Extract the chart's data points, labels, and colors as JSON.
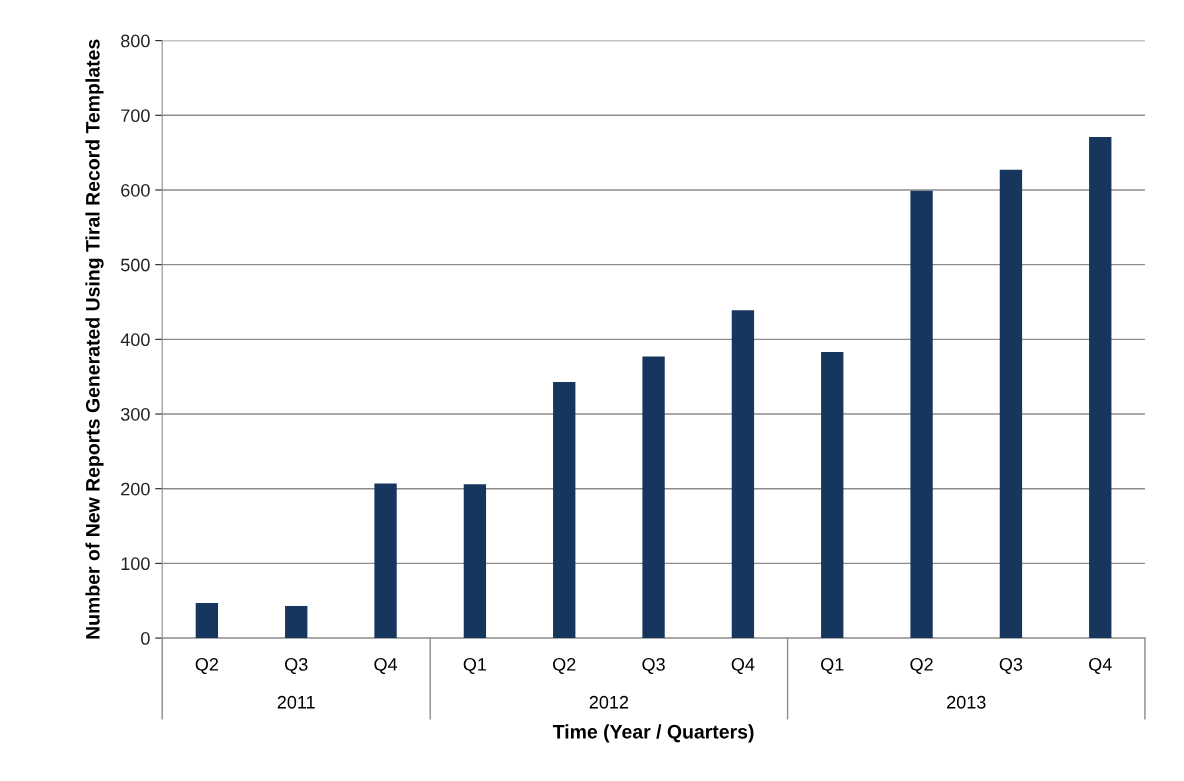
{
  "chart_data": {
    "type": "bar",
    "xlabel": "Time (Year / Quarters)",
    "ylabel": "Number of New Reports Generated Using Tiral Record Templates",
    "categories": [
      "Q2",
      "Q3",
      "Q4",
      "Q1",
      "Q2",
      "Q3",
      "Q4",
      "Q1",
      "Q2",
      "Q3",
      "Q4"
    ],
    "values": [
      47,
      43,
      207,
      206,
      343,
      377,
      439,
      383,
      599,
      627,
      671
    ],
    "color": "#17365d",
    "annotations": [
      "2011",
      "2012",
      "2013"
    ],
    "ylim": [
      0,
      800
    ],
    "yticks": [
      0,
      100,
      200,
      300,
      400,
      500,
      600,
      700,
      800
    ],
    "grid": "y",
    "legend": false
  }
}
